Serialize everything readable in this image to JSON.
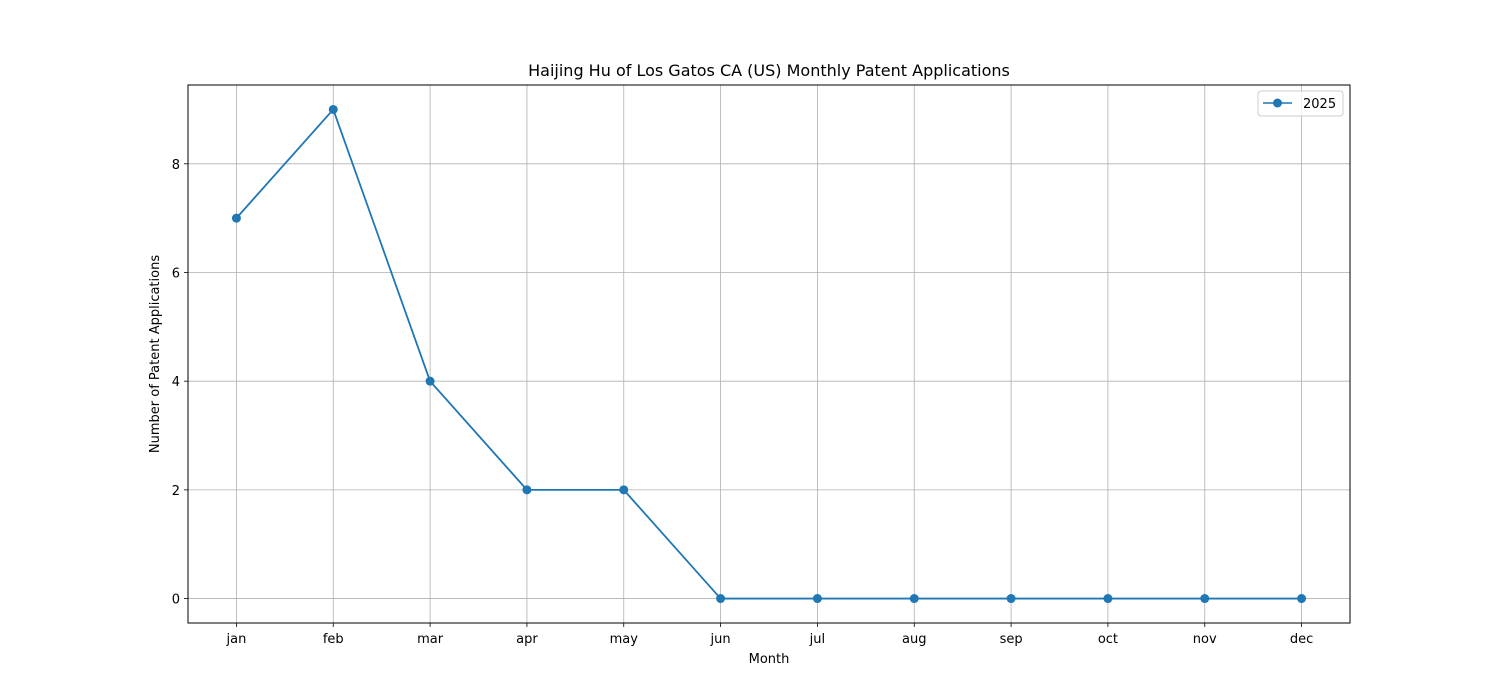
{
  "chart_data": {
    "type": "line",
    "title": "Haijing Hu of Los Gatos CA (US) Monthly Patent Applications",
    "xlabel": "Month",
    "ylabel": "Number of Patent Applications",
    "categories": [
      "jan",
      "feb",
      "mar",
      "apr",
      "may",
      "jun",
      "jul",
      "aug",
      "sep",
      "oct",
      "nov",
      "dec"
    ],
    "series": [
      {
        "name": "2025",
        "values": [
          7,
          9,
          4,
          2,
          2,
          0,
          0,
          0,
          0,
          0,
          0,
          0
        ],
        "color": "#1f77b4"
      }
    ],
    "ylim": [
      -0.45,
      9.45
    ],
    "yticks": [
      0,
      2,
      4,
      6,
      8
    ],
    "grid": true,
    "legend": "top-right"
  }
}
